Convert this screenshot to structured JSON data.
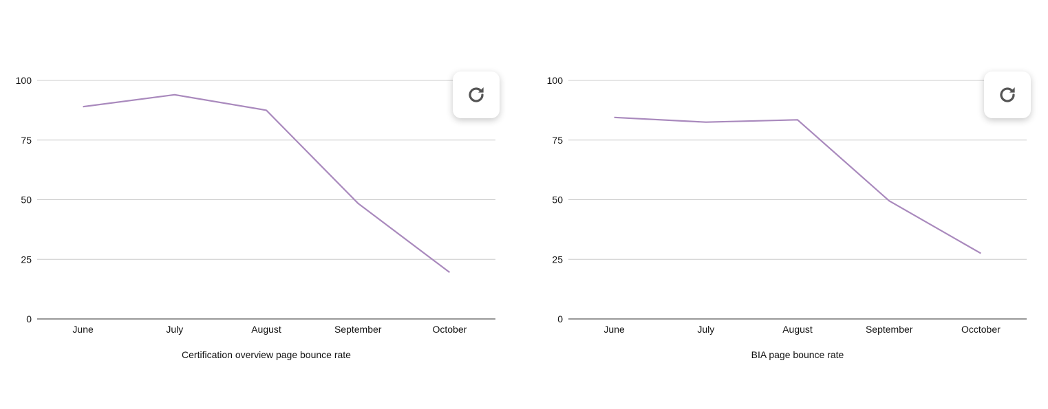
{
  "colors": {
    "line": "#a989bd",
    "grid": "#cccccc",
    "axis": "#333333",
    "text": "#111111",
    "icon": "#555555"
  },
  "chart_data": [
    {
      "type": "line",
      "categories": [
        "June",
        "July",
        "August",
        "September",
        "October"
      ],
      "series": [
        {
          "values": [
            89,
            94,
            87.5,
            48.5,
            19.5
          ]
        }
      ],
      "xlabel": "Certification overview page bounce rate",
      "ylabel": "",
      "ylim": [
        0,
        100
      ],
      "yticks": [
        0,
        25,
        50,
        75,
        100
      ],
      "grid": true,
      "legend": "none",
      "refresh_icon": "refresh-icon"
    },
    {
      "type": "line",
      "categories": [
        "June",
        "July",
        "August",
        "September",
        "Occtober"
      ],
      "series": [
        {
          "values": [
            84.5,
            82.5,
            83.5,
            49.5,
            27.5
          ]
        }
      ],
      "xlabel": "BIA page bounce rate",
      "ylabel": "",
      "ylim": [
        0,
        100
      ],
      "yticks": [
        0,
        25,
        50,
        75,
        100
      ],
      "grid": true,
      "legend": "none",
      "refresh_icon": "refresh-icon"
    }
  ]
}
